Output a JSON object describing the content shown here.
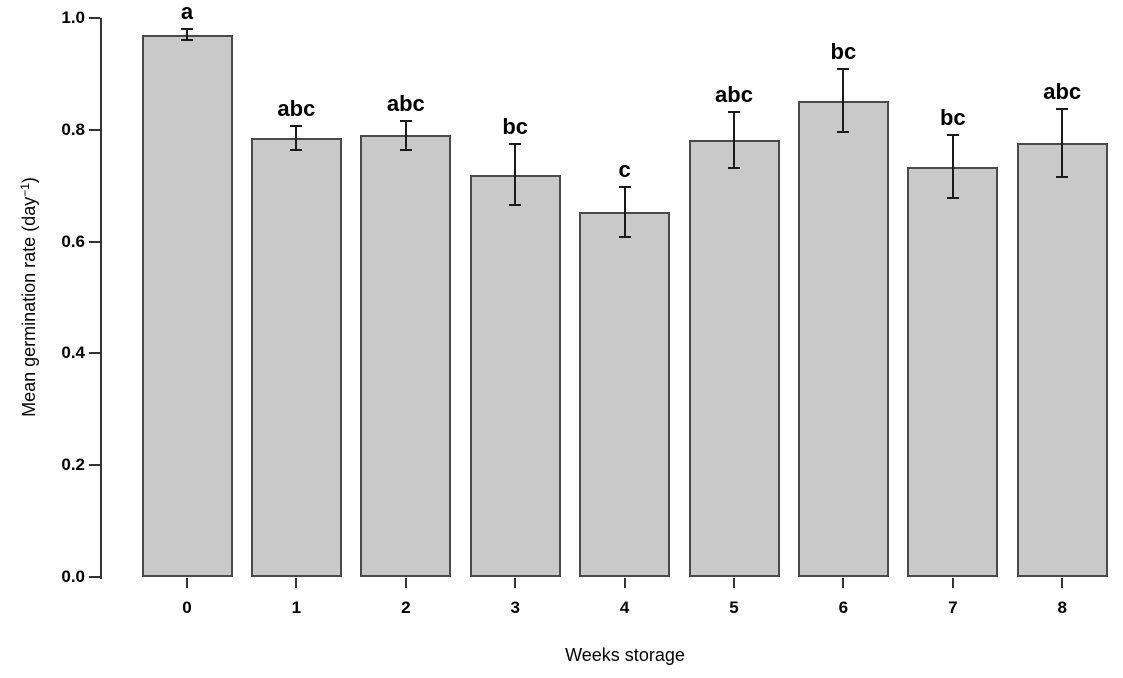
{
  "figure": {
    "background": "#ffffff",
    "text_color": "#000000"
  },
  "chart_data": {
    "type": "bar",
    "title": "",
    "xlabel": "Weeks storage",
    "ylabel": "Mean germination rate (day−1)",
    "ylabel_parts": {
      "prefix": "Mean germination rate (day",
      "superscript": "−1",
      "suffix": ")"
    },
    "categories": [
      "0",
      "1",
      "2",
      "3",
      "4",
      "5",
      "6",
      "7",
      "8"
    ],
    "series": [
      {
        "name": "Mean germination rate",
        "values": [
          0.97,
          0.785,
          0.79,
          0.72,
          0.653,
          0.782,
          0.852,
          0.734,
          0.776
        ],
        "errors": [
          0.01,
          0.022,
          0.026,
          0.055,
          0.045,
          0.05,
          0.056,
          0.056,
          0.061
        ],
        "sig_letters": [
          "a",
          "abc",
          "abc",
          "bc",
          "c",
          "abc",
          "bc",
          "bc",
          "abc"
        ]
      }
    ],
    "y_ticks": [
      0.0,
      0.2,
      0.4,
      0.6,
      0.8,
      1.0
    ],
    "y_tick_labels": [
      "0.0",
      "0.2",
      "0.4",
      "0.6",
      "0.8",
      "1.0"
    ],
    "ylim": [
      0.0,
      1.0
    ],
    "grid": false,
    "legend": null,
    "colors": {
      "bar_fill": "#c9c9c9",
      "bar_border": "#4a4a4a",
      "error_bar": "#1a1a1a",
      "axis": "#333333"
    }
  }
}
